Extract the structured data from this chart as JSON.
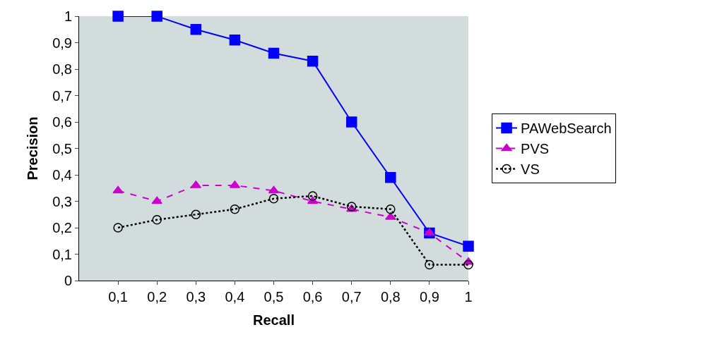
{
  "chart_data": {
    "type": "line",
    "xlabel": "Recall",
    "ylabel": "Precision",
    "categories": [
      "0,1",
      "0,2",
      "0,3",
      "0,4",
      "0,5",
      "0,6",
      "0,7",
      "0,8",
      "0,9",
      "1"
    ],
    "series": [
      {
        "name": "PAWebSearch",
        "color": "#0000ff",
        "marker": "square",
        "line_style": "solid",
        "values": [
          1.0,
          1.0,
          0.95,
          0.91,
          0.86,
          0.83,
          0.6,
          0.39,
          0.18,
          0.13
        ]
      },
      {
        "name": "PVS",
        "color": "#cc00cc",
        "marker": "triangle",
        "line_style": "dashed",
        "values": [
          0.34,
          0.3,
          0.36,
          0.36,
          0.34,
          0.3,
          0.27,
          0.24,
          0.18,
          0.07
        ]
      },
      {
        "name": "VS",
        "color": "#000000",
        "marker": "circle",
        "line_style": "dotted",
        "values": [
          0.2,
          0.23,
          0.25,
          0.27,
          0.31,
          0.32,
          0.28,
          0.27,
          0.06,
          0.06
        ]
      }
    ],
    "ylim": [
      0,
      1
    ],
    "yticks": [
      0,
      {
        "value": 0.1,
        "label": "0,1"
      },
      {
        "value": 0.2,
        "label": "0,2"
      },
      {
        "value": 0.3,
        "label": "0,3"
      },
      {
        "value": 0.4,
        "label": "0,4"
      },
      {
        "value": 0.5,
        "label": "0,5"
      },
      {
        "value": 0.6,
        "label": "0,6"
      },
      {
        "value": 0.7,
        "label": "0,7"
      },
      {
        "value": 0.8,
        "label": "0,8"
      },
      {
        "value": 0.9,
        "label": "0,9"
      },
      1
    ],
    "grid": false,
    "legend": "right"
  }
}
